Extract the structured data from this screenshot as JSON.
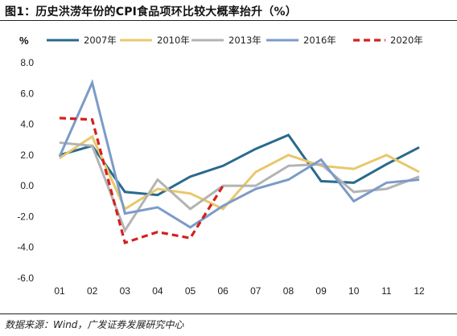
{
  "title": "图1：历史洪涝年份的CPI食品项环比较大概率抬升（%）",
  "source": "数据来源：Wind，广发证券发展研究中心",
  "chart_data": {
    "type": "line",
    "title": "",
    "xlabel": "",
    "ylabel": "%",
    "categories": [
      "01",
      "02",
      "03",
      "04",
      "05",
      "06",
      "07",
      "08",
      "09",
      "10",
      "11",
      "12"
    ],
    "ylim": [
      -6.0,
      8.0
    ],
    "yticks": [
      "8.0",
      "6.0",
      "4.0",
      "2.0",
      "0.0",
      "-2.0",
      "-4.0",
      "-6.0"
    ],
    "grid": false,
    "legend_position": "top",
    "series": [
      {
        "name": "2007年",
        "color": "#2a6a8e",
        "dashed": false,
        "values": [
          2.0,
          2.6,
          -0.4,
          -0.6,
          0.6,
          1.3,
          2.4,
          3.3,
          0.3,
          0.2,
          1.4,
          2.5
        ]
      },
      {
        "name": "2010年",
        "color": "#e8c86a",
        "dashed": false,
        "values": [
          1.8,
          3.2,
          -1.5,
          -0.2,
          -0.5,
          -1.5,
          0.9,
          2.0,
          1.3,
          1.1,
          2.0,
          0.9
        ]
      },
      {
        "name": "2013年",
        "color": "#b3b3b3",
        "dashed": false,
        "values": [
          2.8,
          2.6,
          -2.9,
          0.4,
          -1.5,
          0.0,
          0.0,
          1.3,
          1.4,
          -0.4,
          -0.2,
          0.6
        ]
      },
      {
        "name": "2016年",
        "color": "#7b9bc8",
        "dashed": false,
        "values": [
          1.9,
          6.7,
          -1.8,
          -1.4,
          -2.7,
          -1.3,
          -0.2,
          0.4,
          1.7,
          -1.0,
          0.2,
          0.4
        ]
      },
      {
        "name": "2020年",
        "color": "#d4211e",
        "dashed": true,
        "values": [
          4.4,
          4.3,
          -3.7,
          -3.0,
          -3.4,
          0.0,
          null,
          null,
          null,
          null,
          null,
          null
        ]
      }
    ]
  }
}
